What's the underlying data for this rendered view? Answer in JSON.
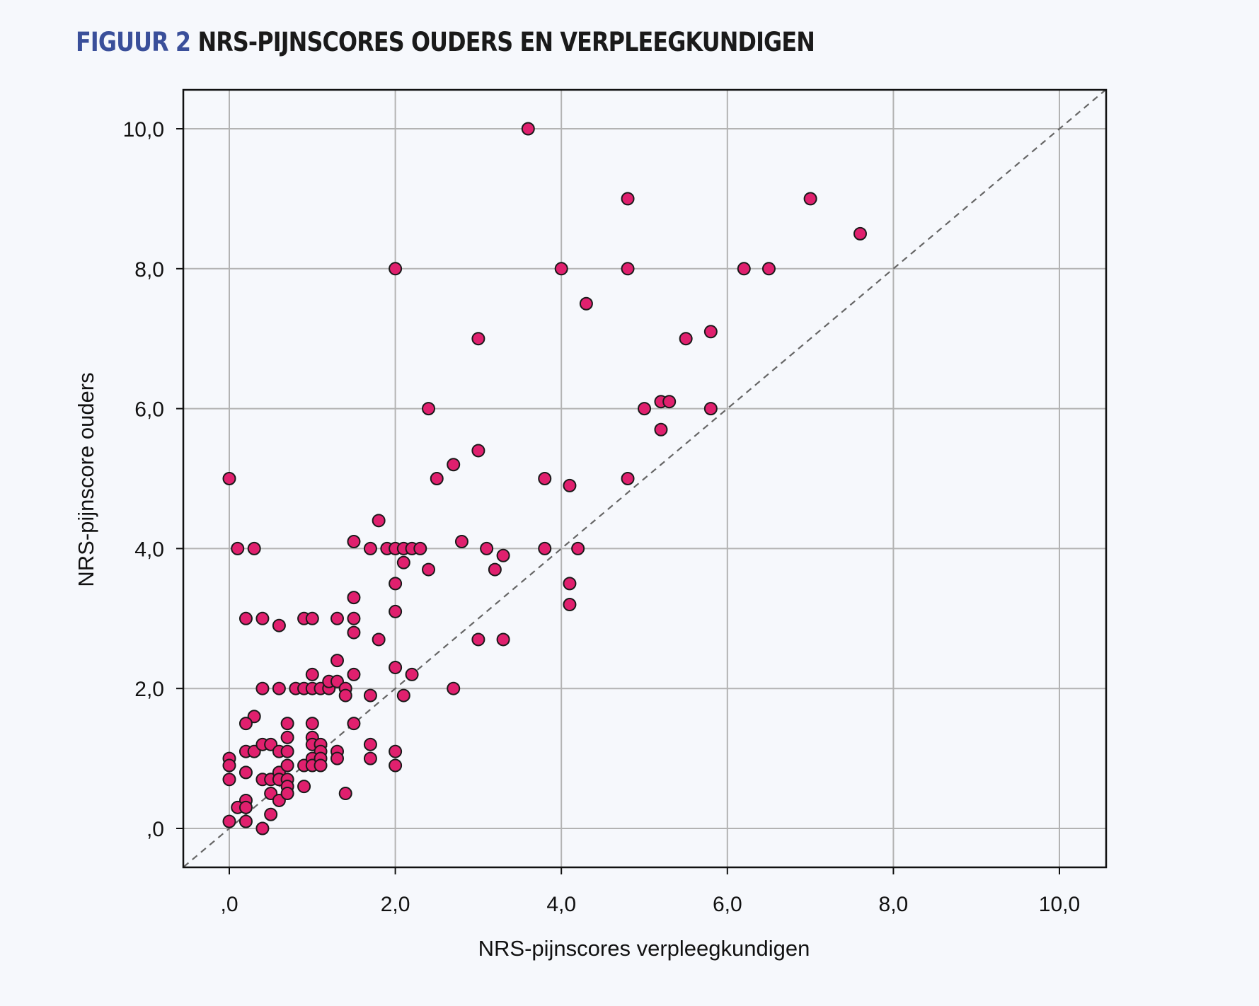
{
  "figure": {
    "label": "FIGUUR 2",
    "caption": "NRS-PIJNSCORES OUDERS EN VERPLEEGKUNDIGEN"
  },
  "colors": {
    "label": "#3a4f9a",
    "point_fill": "#e0206e",
    "point_stroke": "#1a1a1a",
    "grid": "#b3b3b3",
    "diagonal": "#666666",
    "plot_background": "#f6f8fc"
  },
  "chart_data": {
    "type": "scatter",
    "title": "",
    "xlabel": "NRS-pijnscores verpleegkundigen",
    "ylabel": "NRS-pijnscore ouders",
    "xlim": [
      -0.55,
      10.55
    ],
    "ylim": [
      -0.55,
      10.55
    ],
    "xticks": [
      0,
      2,
      4,
      6,
      8,
      10
    ],
    "yticks": [
      0,
      2,
      4,
      6,
      8,
      10
    ],
    "xtick_labels": [
      ",0",
      "2,0",
      "4,0",
      "6,0",
      "8,0",
      "10,0"
    ],
    "ytick_labels": [
      ",0",
      "2,0",
      "4,0",
      "6,0",
      "8,0",
      "10,0"
    ],
    "grid": true,
    "reference_line": "y = x (dashed)",
    "series": [
      {
        "points": [
          [
            0,
            5.0
          ],
          [
            0.1,
            4.0
          ],
          [
            0.3,
            4.0
          ],
          [
            0.2,
            3.0
          ],
          [
            0.4,
            3.0
          ],
          [
            0.6,
            2.9
          ],
          [
            0.9,
            3.0
          ],
          [
            1.0,
            3.0
          ],
          [
            1.3,
            3.0
          ],
          [
            1.5,
            3.0
          ],
          [
            1.5,
            2.8
          ],
          [
            1.5,
            3.3
          ],
          [
            1.5,
            4.1
          ],
          [
            1.7,
            4.0
          ],
          [
            1.8,
            4.4
          ],
          [
            1.8,
            2.7
          ],
          [
            1.9,
            4.0
          ],
          [
            2.0,
            4.0
          ],
          [
            2.1,
            4.0
          ],
          [
            2.2,
            4.0
          ],
          [
            2.3,
            4.0
          ],
          [
            2.1,
            3.8
          ],
          [
            2.0,
            3.5
          ],
          [
            2.0,
            3.1
          ],
          [
            2.0,
            2.3
          ],
          [
            2.2,
            2.2
          ],
          [
            2.1,
            1.9
          ],
          [
            1.7,
            1.9
          ],
          [
            2.4,
            3.7
          ],
          [
            2.4,
            6.0
          ],
          [
            2.5,
            5.0
          ],
          [
            2.7,
            5.2
          ],
          [
            2.8,
            4.1
          ],
          [
            3.0,
            5.4
          ],
          [
            3.0,
            7.0
          ],
          [
            3.1,
            4.0
          ],
          [
            3.2,
            3.7
          ],
          [
            3.3,
            3.9
          ],
          [
            3.0,
            2.7
          ],
          [
            3.3,
            2.7
          ],
          [
            2.7,
            2.0
          ],
          [
            2.0,
            8.0
          ],
          [
            3.6,
            10.0
          ],
          [
            3.8,
            5.0
          ],
          [
            3.8,
            4.0
          ],
          [
            4.0,
            8.0
          ],
          [
            4.1,
            4.9
          ],
          [
            4.1,
            3.5
          ],
          [
            4.1,
            3.2
          ],
          [
            4.2,
            4.0
          ],
          [
            4.3,
            7.5
          ],
          [
            4.8,
            9.0
          ],
          [
            4.8,
            8.0
          ],
          [
            4.8,
            5.0
          ],
          [
            5.0,
            6.0
          ],
          [
            5.2,
            6.1
          ],
          [
            5.3,
            6.1
          ],
          [
            5.2,
            5.7
          ],
          [
            5.5,
            7.0
          ],
          [
            5.8,
            7.1
          ],
          [
            5.8,
            6.0
          ],
          [
            6.2,
            8.0
          ],
          [
            6.5,
            8.0
          ],
          [
            7.0,
            9.0
          ],
          [
            7.6,
            8.5
          ],
          [
            0.4,
            2.0
          ],
          [
            0.6,
            2.0
          ],
          [
            0.8,
            2.0
          ],
          [
            0.9,
            2.0
          ],
          [
            1.0,
            2.0
          ],
          [
            1.1,
            2.0
          ],
          [
            1.2,
            2.0
          ],
          [
            1.0,
            2.2
          ],
          [
            1.2,
            2.1
          ],
          [
            1.3,
            2.1
          ],
          [
            1.3,
            2.4
          ],
          [
            1.4,
            2.0
          ],
          [
            1.4,
            1.9
          ],
          [
            1.5,
            2.2
          ],
          [
            1.5,
            1.5
          ],
          [
            0.3,
            1.6
          ],
          [
            0.2,
            1.5
          ],
          [
            0.2,
            1.1
          ],
          [
            0.3,
            1.1
          ],
          [
            0.4,
            1.2
          ],
          [
            0.5,
            1.2
          ],
          [
            0.6,
            1.1
          ],
          [
            0.7,
            1.5
          ],
          [
            0.7,
            1.3
          ],
          [
            0.7,
            1.1
          ],
          [
            1.0,
            1.5
          ],
          [
            1.0,
            1.3
          ],
          [
            1.0,
            1.2
          ],
          [
            1.1,
            1.2
          ],
          [
            1.1,
            1.1
          ],
          [
            1.3,
            1.1
          ],
          [
            1.7,
            1.2
          ],
          [
            2.0,
            1.1
          ],
          [
            0,
            1.0
          ],
          [
            0,
            0.9
          ],
          [
            0,
            0.7
          ],
          [
            0.2,
            0.8
          ],
          [
            0.4,
            0.7
          ],
          [
            0.5,
            0.7
          ],
          [
            0.6,
            0.8
          ],
          [
            0.6,
            0.7
          ],
          [
            0.7,
            0.7
          ],
          [
            0.7,
            0.6
          ],
          [
            0.7,
            0.9
          ],
          [
            0.9,
            0.9
          ],
          [
            1.0,
            1.0
          ],
          [
            1.0,
            0.9
          ],
          [
            1.1,
            1.0
          ],
          [
            1.1,
            0.9
          ],
          [
            1.3,
            1.0
          ],
          [
            1.7,
            1.0
          ],
          [
            2.0,
            0.9
          ],
          [
            0.9,
            0.6
          ],
          [
            0.5,
            0.5
          ],
          [
            0.6,
            0.4
          ],
          [
            0.7,
            0.5
          ],
          [
            0.2,
            0.4
          ],
          [
            0.1,
            0.3
          ],
          [
            0.2,
            0.3
          ],
          [
            0,
            0.1
          ],
          [
            0.2,
            0.1
          ],
          [
            0.5,
            0.2
          ],
          [
            0.4,
            0.0
          ],
          [
            1.4,
            0.5
          ]
        ]
      }
    ]
  }
}
